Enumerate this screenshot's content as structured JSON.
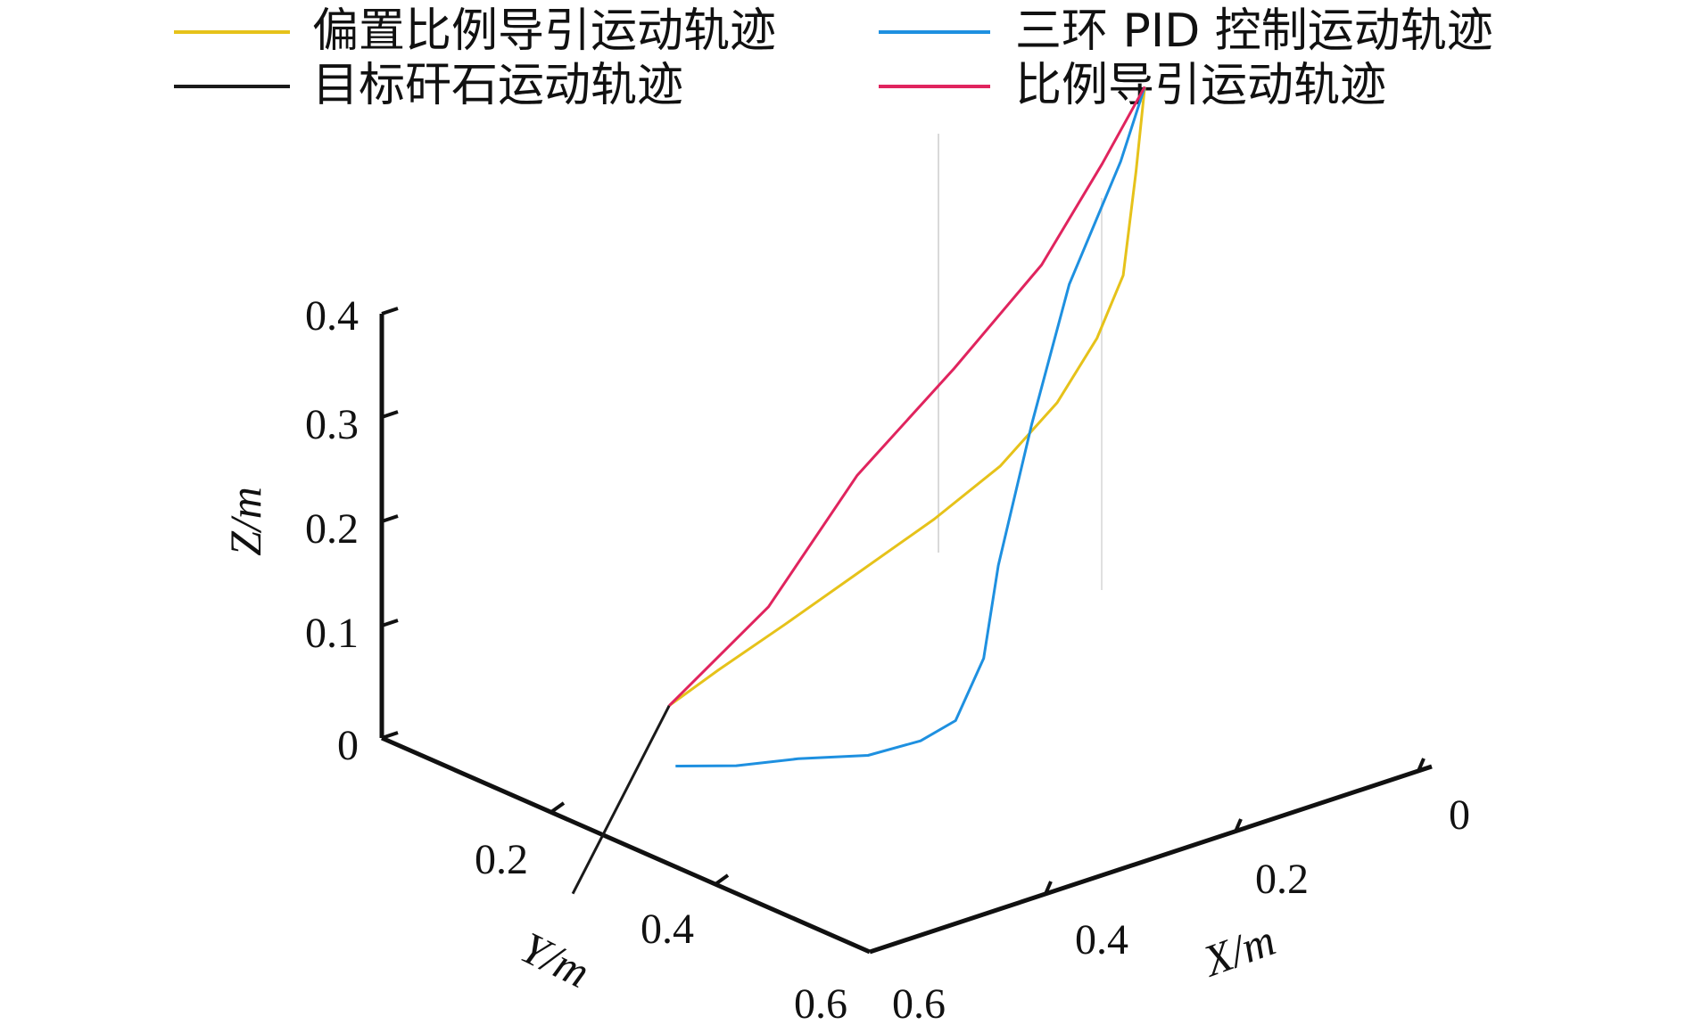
{
  "chart_data": {
    "type": "line",
    "projection": "3d",
    "xlabel": "X/m",
    "ylabel": "Y/m",
    "zlabel": "Z/m",
    "x_ticks": [
      "0",
      "0.2",
      "0.4",
      "0.6"
    ],
    "y_ticks": [
      "0.2",
      "0.4",
      "0.6"
    ],
    "z_ticks": [
      "0",
      "0.1",
      "0.2",
      "0.3",
      "0.4"
    ],
    "xlim": [
      0,
      0.6
    ],
    "ylim": [
      0,
      0.6
    ],
    "zlim": [
      0,
      0.4
    ],
    "grid": false,
    "legend_position": "top",
    "series": [
      {
        "name": "偏置比例导引运动轨迹",
        "color": "#e6c21a",
        "points": [
          [
            0.38,
            0.1,
            0.0
          ],
          [
            0.345,
            0.12,
            0.03
          ],
          [
            0.3,
            0.15,
            0.07
          ],
          [
            0.255,
            0.19,
            0.12
          ],
          [
            0.21,
            0.23,
            0.17
          ],
          [
            0.17,
            0.265,
            0.22
          ],
          [
            0.135,
            0.295,
            0.28
          ],
          [
            0.11,
            0.315,
            0.34
          ],
          [
            0.095,
            0.33,
            0.4
          ],
          [
            0.09,
            0.34,
            0.5
          ],
          [
            0.085,
            0.345,
            0.58
          ]
        ]
      },
      {
        "name": "三环 PID 控制运动轨迹",
        "color": "#1e90e0",
        "points": [
          [
            0.46,
            0.2,
            0.0
          ],
          [
            0.43,
            0.24,
            0.005
          ],
          [
            0.39,
            0.27,
            0.01
          ],
          [
            0.35,
            0.31,
            0.015
          ],
          [
            0.32,
            0.34,
            0.03
          ],
          [
            0.3,
            0.36,
            0.05
          ],
          [
            0.27,
            0.36,
            0.1
          ],
          [
            0.25,
            0.355,
            0.18
          ],
          [
            0.21,
            0.35,
            0.3
          ],
          [
            0.17,
            0.35,
            0.42
          ],
          [
            0.115,
            0.35,
            0.52
          ],
          [
            0.085,
            0.345,
            0.58
          ]
        ]
      },
      {
        "name": "目标矸石运动轨迹",
        "color": "#1a1a1a",
        "points": [
          [
            0.38,
            0.1,
            0.0
          ],
          [
            0.7,
            0.35,
            0.0
          ]
        ]
      },
      {
        "name": "比例导引运动轨迹",
        "color": "#e0245e",
        "points": [
          [
            0.38,
            0.1,
            0.0
          ],
          [
            0.3,
            0.13,
            0.08
          ],
          [
            0.24,
            0.17,
            0.2
          ],
          [
            0.18,
            0.22,
            0.3
          ],
          [
            0.13,
            0.27,
            0.4
          ],
          [
            0.1,
            0.31,
            0.5
          ],
          [
            0.085,
            0.345,
            0.58
          ]
        ]
      }
    ]
  }
}
